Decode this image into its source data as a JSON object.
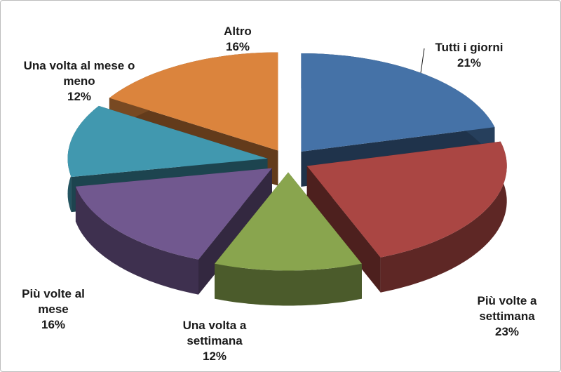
{
  "chart_data": {
    "type": "pie3d",
    "categories": [
      "Tutti i giorni",
      "Più volte a settimana",
      "Una volta a settimana",
      "Più volte al mese",
      "Una volta al mese o meno",
      "Altro"
    ],
    "values": [
      21,
      23,
      12,
      16,
      12,
      16
    ],
    "value_labels": [
      "21%",
      "23%",
      "12%",
      "16%",
      "12%",
      "16%"
    ],
    "colors": [
      "#4572a7",
      "#aa4643",
      "#89a54e",
      "#71588f",
      "#4198af",
      "#db843d"
    ]
  }
}
